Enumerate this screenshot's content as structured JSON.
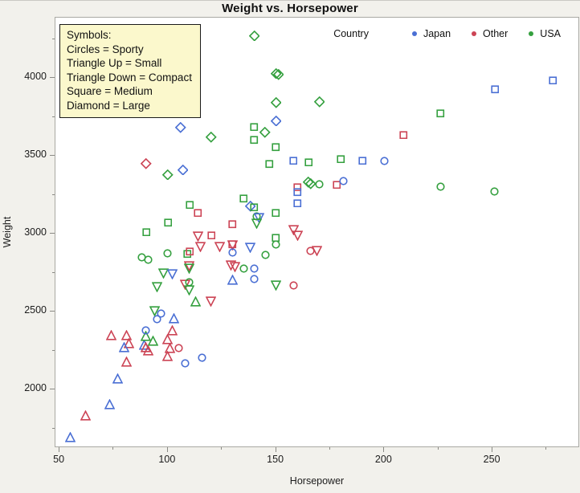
{
  "window": {
    "title": "Weight vs. Horsepower"
  },
  "symbol_legend": {
    "lines": [
      "Symbols:",
      "Circles = Sporty",
      "Triangle Up = Small",
      "Triangle Down = Compact",
      "Square = Medium",
      "Diamond = Large"
    ]
  },
  "country_legend": {
    "label": "Country",
    "items": [
      {
        "label": "Japan",
        "color": "#4a6fd4"
      },
      {
        "label": "Other",
        "color": "#cc4455"
      },
      {
        "label": "USA",
        "color": "#35a03f"
      }
    ]
  },
  "chart_data": {
    "type": "scatter",
    "title": "Weight vs. Horsepower",
    "xlabel": "Horsepower",
    "ylabel": "Weight",
    "xlim": [
      48.1,
      290.4
    ],
    "ylim": [
      1624,
      4387
    ],
    "x_major_ticks": [
      50,
      100,
      150,
      200,
      250
    ],
    "x_minor_ticks": [
      75,
      125,
      175,
      225,
      275
    ],
    "y_major_ticks": [
      2000,
      2500,
      3000,
      3500,
      4000
    ],
    "y_minor_ticks": [
      1750,
      2250,
      2750,
      3250,
      3750,
      4250
    ],
    "grid": false,
    "legend_position": "top-right",
    "symbol_map": {
      "sporty": "circle",
      "small": "triangle-up",
      "compact": "triangle-down",
      "medium": "square",
      "large": "diamond"
    },
    "country_colors": {
      "japan": "#4a6fd4",
      "other": "#cc4455",
      "usa": "#35a03f"
    },
    "points": [
      [
        55,
        1695,
        "small",
        "japan"
      ],
      [
        62,
        1835,
        "small",
        "other"
      ],
      [
        73,
        1905,
        "small",
        "japan"
      ],
      [
        77,
        2070,
        "small",
        "japan"
      ],
      [
        81,
        2180,
        "small",
        "other"
      ],
      [
        74,
        2350,
        "small",
        "other"
      ],
      [
        81,
        2350,
        "small",
        "other"
      ],
      [
        82,
        2295,
        "small",
        "other"
      ],
      [
        80,
        2270,
        "small",
        "japan"
      ],
      [
        89,
        2285,
        "small",
        "japan"
      ],
      [
        90,
        2270,
        "small",
        "other"
      ],
      [
        91,
        2250,
        "small",
        "other"
      ],
      [
        90,
        2345,
        "small",
        "usa"
      ],
      [
        93,
        2310,
        "small",
        "usa"
      ],
      [
        90,
        2380,
        "sporty",
        "japan"
      ],
      [
        100,
        2320,
        "small",
        "other"
      ],
      [
        101,
        2265,
        "small",
        "other"
      ],
      [
        105,
        2265,
        "sporty",
        "other"
      ],
      [
        100,
        2215,
        "small",
        "other"
      ],
      [
        108,
        2170,
        "sporty",
        "japan"
      ],
      [
        116,
        2205,
        "sporty",
        "japan"
      ],
      [
        102,
        2380,
        "small",
        "other"
      ],
      [
        103,
        2455,
        "small",
        "japan"
      ],
      [
        95,
        2450,
        "sporty",
        "japan"
      ],
      [
        97,
        2485,
        "sporty",
        "japan"
      ],
      [
        94,
        2505,
        "compact",
        "usa"
      ],
      [
        113,
        2565,
        "small",
        "usa"
      ],
      [
        120,
        2565,
        "compact",
        "other"
      ],
      [
        95,
        2660,
        "compact",
        "usa"
      ],
      [
        108,
        2675,
        "compact",
        "other"
      ],
      [
        110,
        2690,
        "sporty",
        "usa"
      ],
      [
        110,
        2635,
        "compact",
        "usa"
      ],
      [
        98,
        2745,
        "compact",
        "usa"
      ],
      [
        102,
        2740,
        "compact",
        "japan"
      ],
      [
        110,
        2790,
        "compact",
        "other"
      ],
      [
        110,
        2775,
        "compact",
        "usa"
      ],
      [
        129,
        2795,
        "compact",
        "other"
      ],
      [
        131,
        2785,
        "compact",
        "other"
      ],
      [
        130,
        2705,
        "small",
        "japan"
      ],
      [
        135,
        2775,
        "sporty",
        "usa"
      ],
      [
        140,
        2775,
        "sporty",
        "japan"
      ],
      [
        140,
        2710,
        "sporty",
        "japan"
      ],
      [
        150,
        2670,
        "compact",
        "usa"
      ],
      [
        158,
        2670,
        "sporty",
        "other"
      ],
      [
        88,
        2850,
        "sporty",
        "usa"
      ],
      [
        91,
        2835,
        "sporty",
        "usa"
      ],
      [
        100,
        2875,
        "sporty",
        "usa"
      ],
      [
        109,
        2870,
        "medium",
        "usa"
      ],
      [
        110,
        2885,
        "medium",
        "other"
      ],
      [
        114,
        2980,
        "compact",
        "other"
      ],
      [
        115,
        2915,
        "compact",
        "other"
      ],
      [
        124,
        2915,
        "compact",
        "other"
      ],
      [
        130,
        2930,
        "medium",
        "other"
      ],
      [
        130,
        2925,
        "compact",
        "other"
      ],
      [
        130,
        2880,
        "sporty",
        "japan"
      ],
      [
        138,
        2910,
        "compact",
        "japan"
      ],
      [
        145,
        2865,
        "sporty",
        "usa"
      ],
      [
        120,
        2990,
        "medium",
        "other"
      ],
      [
        130,
        3060,
        "medium",
        "other"
      ],
      [
        90,
        3010,
        "medium",
        "usa"
      ],
      [
        100,
        3070,
        "medium",
        "usa"
      ],
      [
        110,
        3185,
        "medium",
        "usa"
      ],
      [
        114,
        3135,
        "medium",
        "other"
      ],
      [
        135,
        3225,
        "medium",
        "usa"
      ],
      [
        138,
        3175,
        "large",
        "japan"
      ],
      [
        140,
        3170,
        "medium",
        "usa"
      ],
      [
        141,
        3110,
        "sporty",
        "usa"
      ],
      [
        142,
        3100,
        "compact",
        "japan"
      ],
      [
        141,
        3065,
        "compact",
        "usa"
      ],
      [
        150,
        3135,
        "medium",
        "usa"
      ],
      [
        150,
        2975,
        "medium",
        "usa"
      ],
      [
        150,
        2930,
        "sporty",
        "usa"
      ],
      [
        158,
        3025,
        "compact",
        "other"
      ],
      [
        160,
        2990,
        "compact",
        "other"
      ],
      [
        166,
        2890,
        "sporty",
        "other"
      ],
      [
        169,
        2890,
        "compact",
        "other"
      ],
      [
        90,
        3450,
        "large",
        "other"
      ],
      [
        100,
        3380,
        "large",
        "usa"
      ],
      [
        107,
        3410,
        "large",
        "japan"
      ],
      [
        106,
        3680,
        "large",
        "japan"
      ],
      [
        120,
        3620,
        "large",
        "usa"
      ],
      [
        160,
        3300,
        "medium",
        "other"
      ],
      [
        160,
        3265,
        "medium",
        "japan"
      ],
      [
        160,
        3195,
        "medium",
        "japan"
      ],
      [
        165,
        3330,
        "large",
        "usa"
      ],
      [
        166,
        3320,
        "large",
        "usa"
      ],
      [
        170,
        3315,
        "sporty",
        "usa"
      ],
      [
        178,
        3315,
        "medium",
        "other"
      ],
      [
        181,
        3340,
        "sporty",
        "japan"
      ],
      [
        140,
        4270,
        "large",
        "usa"
      ],
      [
        150,
        4030,
        "large",
        "usa"
      ],
      [
        151,
        4020,
        "large",
        "usa"
      ],
      [
        150,
        3840,
        "large",
        "usa"
      ],
      [
        170,
        3845,
        "large",
        "usa"
      ],
      [
        150,
        3725,
        "large",
        "japan"
      ],
      [
        145,
        3650,
        "large",
        "usa"
      ],
      [
        140,
        3685,
        "medium",
        "usa"
      ],
      [
        140,
        3600,
        "medium",
        "usa"
      ],
      [
        150,
        3555,
        "medium",
        "usa"
      ],
      [
        147,
        3445,
        "medium",
        "usa"
      ],
      [
        158,
        3470,
        "medium",
        "japan"
      ],
      [
        165,
        3460,
        "medium",
        "usa"
      ],
      [
        180,
        3480,
        "medium",
        "usa"
      ],
      [
        190,
        3470,
        "medium",
        "japan"
      ],
      [
        200,
        3465,
        "sporty",
        "japan"
      ],
      [
        209,
        3635,
        "medium",
        "other"
      ],
      [
        226,
        3770,
        "medium",
        "usa"
      ],
      [
        251,
        3925,
        "medium",
        "japan"
      ],
      [
        278,
        3985,
        "medium",
        "japan"
      ],
      [
        226,
        3300,
        "sporty",
        "usa"
      ],
      [
        251,
        3270,
        "sporty",
        "usa"
      ]
    ]
  }
}
